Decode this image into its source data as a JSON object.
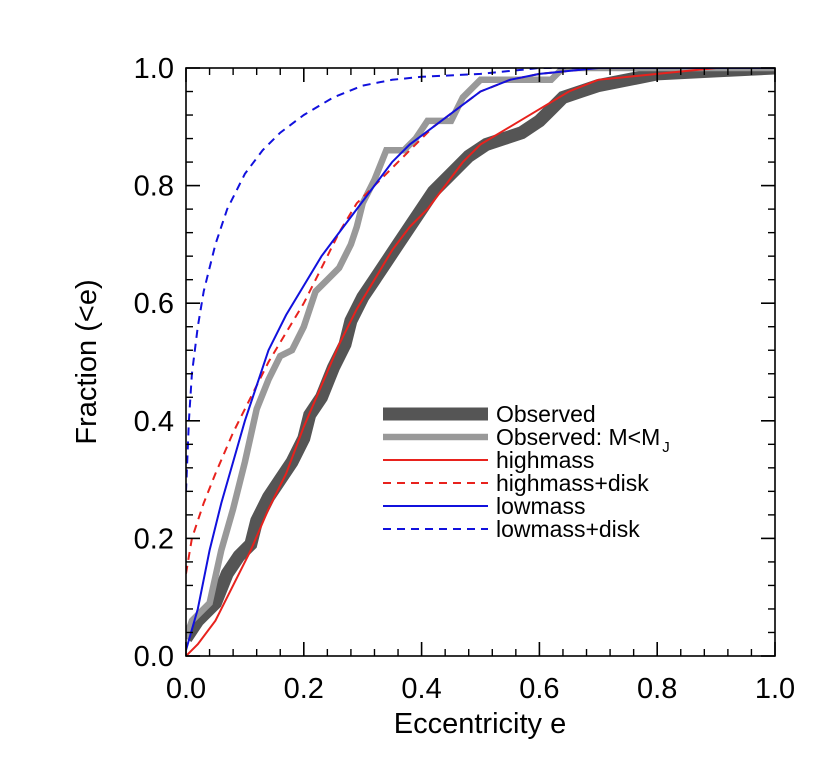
{
  "chart_data": {
    "type": "line",
    "title": "",
    "xlabel": "Eccentricity e",
    "ylabel": "Fraction (<e)",
    "xlim": [
      0.0,
      1.0
    ],
    "ylim": [
      0.0,
      1.0
    ],
    "x_ticks": [
      "0.0",
      "0.2",
      "0.4",
      "0.6",
      "0.8",
      "1.0"
    ],
    "y_ticks": [
      "0.0",
      "0.2",
      "0.4",
      "0.6",
      "0.8",
      "1.0"
    ],
    "legend_placement": "lower-right",
    "grid": false,
    "series": [
      {
        "name": "Observed",
        "color": "#555555",
        "style": "solid-thick",
        "points": [
          [
            0.0,
            0.03
          ],
          [
            0.02,
            0.06
          ],
          [
            0.05,
            0.09
          ],
          [
            0.07,
            0.14
          ],
          [
            0.09,
            0.17
          ],
          [
            0.11,
            0.19
          ],
          [
            0.12,
            0.23
          ],
          [
            0.14,
            0.27
          ],
          [
            0.16,
            0.3
          ],
          [
            0.18,
            0.33
          ],
          [
            0.2,
            0.37
          ],
          [
            0.21,
            0.41
          ],
          [
            0.23,
            0.44
          ],
          [
            0.25,
            0.49
          ],
          [
            0.27,
            0.53
          ],
          [
            0.28,
            0.57
          ],
          [
            0.3,
            0.61
          ],
          [
            0.32,
            0.64
          ],
          [
            0.34,
            0.67
          ],
          [
            0.36,
            0.7
          ],
          [
            0.38,
            0.73
          ],
          [
            0.4,
            0.76
          ],
          [
            0.42,
            0.79
          ],
          [
            0.45,
            0.82
          ],
          [
            0.48,
            0.85
          ],
          [
            0.51,
            0.87
          ],
          [
            0.54,
            0.88
          ],
          [
            0.57,
            0.89
          ],
          [
            0.6,
            0.91
          ],
          [
            0.62,
            0.93
          ],
          [
            0.64,
            0.95
          ],
          [
            0.67,
            0.96
          ],
          [
            0.7,
            0.97
          ],
          [
            0.75,
            0.98
          ],
          [
            0.8,
            0.99
          ],
          [
            0.9,
            0.995
          ],
          [
            1.0,
            1.0
          ]
        ]
      },
      {
        "name": "Observed: M<M_J",
        "color": "#999999",
        "style": "solid-medium",
        "points": [
          [
            0.0,
            0.03
          ],
          [
            0.01,
            0.06
          ],
          [
            0.04,
            0.09
          ],
          [
            0.06,
            0.18
          ],
          [
            0.08,
            0.25
          ],
          [
            0.1,
            0.33
          ],
          [
            0.12,
            0.42
          ],
          [
            0.14,
            0.47
          ],
          [
            0.16,
            0.51
          ],
          [
            0.18,
            0.52
          ],
          [
            0.2,
            0.56
          ],
          [
            0.22,
            0.62
          ],
          [
            0.24,
            0.64
          ],
          [
            0.26,
            0.66
          ],
          [
            0.28,
            0.7
          ],
          [
            0.29,
            0.73
          ],
          [
            0.3,
            0.77
          ],
          [
            0.32,
            0.81
          ],
          [
            0.34,
            0.86
          ],
          [
            0.37,
            0.86
          ],
          [
            0.39,
            0.88
          ],
          [
            0.41,
            0.91
          ],
          [
            0.45,
            0.91
          ],
          [
            0.47,
            0.95
          ],
          [
            0.5,
            0.98
          ],
          [
            0.56,
            0.98
          ],
          [
            0.62,
            0.98
          ],
          [
            0.64,
            1.0
          ],
          [
            1.0,
            1.0
          ]
        ]
      },
      {
        "name": "highmass",
        "color": "#e8221d",
        "style": "solid-thin",
        "points": [
          [
            0.0,
            0.0
          ],
          [
            0.02,
            0.02
          ],
          [
            0.05,
            0.06
          ],
          [
            0.08,
            0.12
          ],
          [
            0.11,
            0.18
          ],
          [
            0.14,
            0.25
          ],
          [
            0.17,
            0.31
          ],
          [
            0.2,
            0.39
          ],
          [
            0.23,
            0.46
          ],
          [
            0.26,
            0.53
          ],
          [
            0.29,
            0.59
          ],
          [
            0.32,
            0.64
          ],
          [
            0.35,
            0.69
          ],
          [
            0.38,
            0.73
          ],
          [
            0.41,
            0.76
          ],
          [
            0.44,
            0.8
          ],
          [
            0.47,
            0.84
          ],
          [
            0.5,
            0.87
          ],
          [
            0.55,
            0.9
          ],
          [
            0.6,
            0.93
          ],
          [
            0.65,
            0.96
          ],
          [
            0.7,
            0.98
          ],
          [
            0.8,
            0.99
          ],
          [
            0.9,
            1.0
          ],
          [
            1.0,
            1.0
          ]
        ]
      },
      {
        "name": "highmass+disk",
        "color": "#e8221d",
        "style": "dashed",
        "points": [
          [
            0.0,
            0.14
          ],
          [
            0.01,
            0.2
          ],
          [
            0.03,
            0.26
          ],
          [
            0.05,
            0.31
          ],
          [
            0.08,
            0.38
          ],
          [
            0.11,
            0.44
          ],
          [
            0.14,
            0.5
          ],
          [
            0.17,
            0.55
          ],
          [
            0.2,
            0.6
          ],
          [
            0.23,
            0.66
          ],
          [
            0.26,
            0.72
          ],
          [
            0.29,
            0.77
          ],
          [
            0.32,
            0.8
          ],
          [
            0.35,
            0.83
          ],
          [
            0.38,
            0.86
          ],
          [
            0.42,
            0.9
          ],
          [
            0.46,
            0.93
          ],
          [
            0.5,
            0.96
          ],
          [
            0.55,
            0.98
          ],
          [
            0.6,
            0.99
          ],
          [
            0.7,
            1.0
          ],
          [
            1.0,
            1.0
          ]
        ]
      },
      {
        "name": "lowmass",
        "color": "#1111dd",
        "style": "solid-thin",
        "points": [
          [
            0.0,
            0.01
          ],
          [
            0.02,
            0.08
          ],
          [
            0.04,
            0.18
          ],
          [
            0.06,
            0.26
          ],
          [
            0.08,
            0.33
          ],
          [
            0.1,
            0.4
          ],
          [
            0.12,
            0.46
          ],
          [
            0.14,
            0.52
          ],
          [
            0.17,
            0.58
          ],
          [
            0.2,
            0.63
          ],
          [
            0.23,
            0.68
          ],
          [
            0.26,
            0.72
          ],
          [
            0.29,
            0.76
          ],
          [
            0.32,
            0.8
          ],
          [
            0.35,
            0.84
          ],
          [
            0.38,
            0.87
          ],
          [
            0.42,
            0.9
          ],
          [
            0.46,
            0.93
          ],
          [
            0.5,
            0.96
          ],
          [
            0.55,
            0.98
          ],
          [
            0.6,
            0.99
          ],
          [
            0.7,
            1.0
          ],
          [
            1.0,
            1.0
          ]
        ]
      },
      {
        "name": "lowmass+disk",
        "color": "#1111dd",
        "style": "dashed",
        "points": [
          [
            0.0,
            0.28
          ],
          [
            0.005,
            0.4
          ],
          [
            0.01,
            0.48
          ],
          [
            0.02,
            0.56
          ],
          [
            0.03,
            0.62
          ],
          [
            0.05,
            0.7
          ],
          [
            0.07,
            0.76
          ],
          [
            0.1,
            0.82
          ],
          [
            0.13,
            0.86
          ],
          [
            0.16,
            0.89
          ],
          [
            0.2,
            0.92
          ],
          [
            0.25,
            0.95
          ],
          [
            0.3,
            0.97
          ],
          [
            0.35,
            0.98
          ],
          [
            0.4,
            0.985
          ],
          [
            0.5,
            0.99
          ],
          [
            0.6,
            1.0
          ],
          [
            1.0,
            1.0
          ]
        ]
      }
    ]
  }
}
